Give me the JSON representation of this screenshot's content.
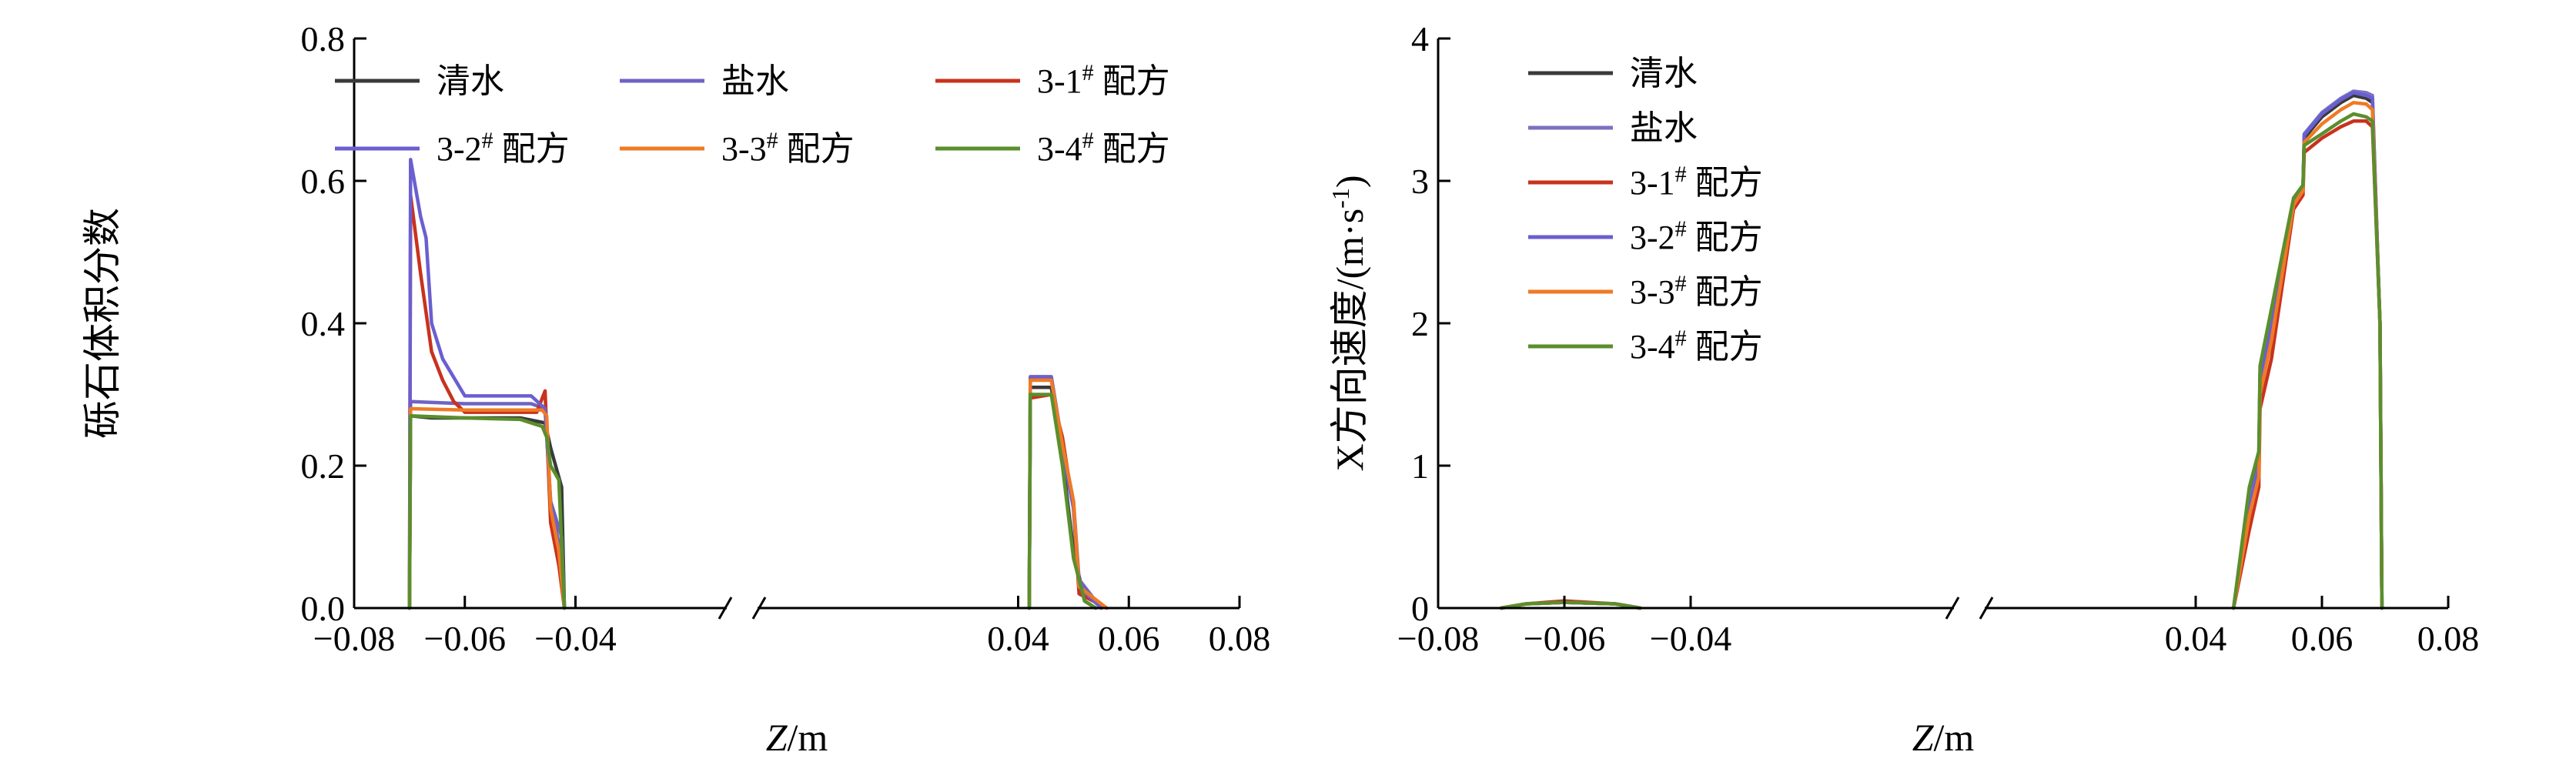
{
  "chart_data": [
    {
      "type": "line",
      "ylabel": "砾石体积分数",
      "xlabel": "Z/m",
      "xlim": [
        -0.08,
        0.08
      ],
      "ylim": [
        0,
        0.8
      ],
      "axis_break": [
        -0.037,
        -0.033
      ],
      "xticks": [
        "−0.08",
        "−0.06",
        "−0.04",
        "0.04",
        "0.06",
        "0.08"
      ],
      "yticks": [
        "0.0",
        "0.2",
        "0.4",
        "0.6",
        "0.8"
      ],
      "legend": {
        "placement": "top",
        "columns": 3
      },
      "series": [
        {
          "name": "清水",
          "sup": "",
          "suffix": "",
          "color": "#3a3a3a",
          "points": [
            [
              -0.07,
              0
            ],
            [
              -0.0698,
              0.27
            ],
            [
              -0.066,
              0.267
            ],
            [
              -0.05,
              0.267
            ],
            [
              -0.0455,
              0.26
            ],
            [
              -0.0445,
              0.225
            ],
            [
              -0.0425,
              0.17
            ],
            [
              -0.042,
              0
            ],
            [
              0.042,
              0
            ],
            [
              0.0422,
              0.31
            ],
            [
              0.046,
              0.31
            ],
            [
              0.048,
              0.21
            ],
            [
              0.05,
              0.08
            ],
            [
              0.052,
              0.01
            ],
            [
              0.054,
              0
            ]
          ]
        },
        {
          "name": "盐水",
          "sup": "",
          "suffix": "",
          "color": "#6f64c3",
          "points": [
            [
              -0.07,
              0
            ],
            [
              -0.0698,
              0.29
            ],
            [
              -0.06,
              0.287
            ],
            [
              -0.048,
              0.287
            ],
            [
              -0.0455,
              0.28
            ],
            [
              -0.0445,
              0.15
            ],
            [
              -0.0425,
              0.1
            ],
            [
              -0.042,
              0
            ],
            [
              0.042,
              0
            ],
            [
              0.0422,
              0.325
            ],
            [
              0.046,
              0.325
            ],
            [
              0.048,
              0.23
            ],
            [
              0.05,
              0.15
            ],
            [
              0.051,
              0.04
            ],
            [
              0.055,
              0
            ]
          ]
        },
        {
          "name": "3-1",
          "sup": "#",
          "suffix": " 配方",
          "color": "#c8321e",
          "points": [
            [
              -0.07,
              0
            ],
            [
              -0.0698,
              0.58
            ],
            [
              -0.068,
              0.47
            ],
            [
              -0.066,
              0.36
            ],
            [
              -0.064,
              0.32
            ],
            [
              -0.062,
              0.29
            ],
            [
              -0.06,
              0.275
            ],
            [
              -0.047,
              0.275
            ],
            [
              -0.0455,
              0.305
            ],
            [
              -0.0445,
              0.12
            ],
            [
              -0.043,
              0.06
            ],
            [
              -0.042,
              0
            ],
            [
              0.042,
              0
            ],
            [
              0.0422,
              0.295
            ],
            [
              0.046,
              0.3
            ],
            [
              0.048,
              0.24
            ],
            [
              0.05,
              0.14
            ],
            [
              0.051,
              0.02
            ],
            [
              0.056,
              0
            ]
          ]
        },
        {
          "name": "3-2",
          "sup": "#",
          "suffix": " 配方",
          "color": "#6a5fd0",
          "points": [
            [
              -0.07,
              0
            ],
            [
              -0.0698,
              0.63
            ],
            [
              -0.068,
              0.55
            ],
            [
              -0.067,
              0.52
            ],
            [
              -0.066,
              0.4
            ],
            [
              -0.064,
              0.35
            ],
            [
              -0.06,
              0.298
            ],
            [
              -0.048,
              0.298
            ],
            [
              -0.0455,
              0.28
            ],
            [
              -0.0445,
              0.15
            ],
            [
              -0.043,
              0.09
            ],
            [
              -0.042,
              0
            ],
            [
              0.042,
              0
            ],
            [
              0.0422,
              0.322
            ],
            [
              0.046,
              0.322
            ],
            [
              0.048,
              0.22
            ],
            [
              0.05,
              0.14
            ],
            [
              0.051,
              0.03
            ],
            [
              0.055,
              0
            ]
          ]
        },
        {
          "name": "3-3",
          "sup": "#",
          "suffix": " 配方",
          "color": "#ef7a25",
          "points": [
            [
              -0.07,
              0
            ],
            [
              -0.0698,
              0.28
            ],
            [
              -0.06,
              0.278
            ],
            [
              -0.046,
              0.278
            ],
            [
              -0.0452,
              0.27
            ],
            [
              -0.0445,
              0.14
            ],
            [
              -0.043,
              0.08
            ],
            [
              -0.042,
              0
            ],
            [
              0.042,
              0
            ],
            [
              0.0422,
              0.32
            ],
            [
              0.046,
              0.32
            ],
            [
              0.048,
              0.23
            ],
            [
              0.05,
              0.15
            ],
            [
              0.051,
              0.03
            ],
            [
              0.056,
              0
            ]
          ]
        },
        {
          "name": "3-4",
          "sup": "#",
          "suffix": " 配方",
          "color": "#5a8f2c",
          "points": [
            [
              -0.07,
              0
            ],
            [
              -0.0698,
              0.27
            ],
            [
              -0.06,
              0.267
            ],
            [
              -0.05,
              0.265
            ],
            [
              -0.046,
              0.255
            ],
            [
              -0.0452,
              0.24
            ],
            [
              -0.0445,
              0.2
            ],
            [
              -0.043,
              0.18
            ],
            [
              -0.042,
              0
            ],
            [
              0.042,
              0
            ],
            [
              0.0422,
              0.3
            ],
            [
              0.046,
              0.3
            ],
            [
              0.048,
              0.2
            ],
            [
              0.05,
              0.07
            ],
            [
              0.052,
              0.01
            ],
            [
              0.054,
              0
            ]
          ]
        }
      ]
    },
    {
      "type": "line",
      "ylabel": "X方向速度/(m·s",
      "ylabel_sup": "-1",
      "ylabel_end": ")",
      "xlabel": "Z/m",
      "xlim": [
        -0.08,
        0.08
      ],
      "ylim": [
        0,
        4
      ],
      "axis_break": [
        -0.02,
        -0.016
      ],
      "xticks": [
        "−0.08",
        "−0.06",
        "−0.04",
        "0.04",
        "0.06",
        "0.08"
      ],
      "yticks": [
        "0",
        "1",
        "2",
        "3",
        "4"
      ],
      "legend": {
        "placement": "top-left",
        "columns": 1
      },
      "series": [
        {
          "name": "清水",
          "sup": "",
          "suffix": "",
          "color": "#3a3a3a",
          "points": [
            [
              -0.07,
              0
            ],
            [
              -0.066,
              0.03
            ],
            [
              -0.06,
              0.04
            ],
            [
              -0.052,
              0.03
            ],
            [
              -0.048,
              0
            ],
            [
              0.046,
              0
            ],
            [
              0.0485,
              0.8
            ],
            [
              0.05,
              1.05
            ],
            [
              0.0502,
              1.65
            ],
            [
              0.052,
              2.05
            ],
            [
              0.0555,
              2.85
            ],
            [
              0.057,
              2.95
            ],
            [
              0.0572,
              3.3
            ],
            [
              0.06,
              3.45
            ],
            [
              0.063,
              3.55
            ],
            [
              0.065,
              3.6
            ],
            [
              0.067,
              3.58
            ],
            [
              0.068,
              3.55
            ],
            [
              0.0692,
              2.0
            ],
            [
              0.0695,
              0
            ]
          ]
        },
        {
          "name": "盐水",
          "sup": "",
          "suffix": "",
          "color": "#7a72c0",
          "points": [
            [
              -0.07,
              0
            ],
            [
              -0.066,
              0.03
            ],
            [
              -0.06,
              0.04
            ],
            [
              -0.052,
              0.03
            ],
            [
              -0.048,
              0
            ],
            [
              0.046,
              0
            ],
            [
              0.0485,
              0.75
            ],
            [
              0.05,
              1.0
            ],
            [
              0.0502,
              1.6
            ],
            [
              0.052,
              2.0
            ],
            [
              0.0555,
              2.85
            ],
            [
              0.057,
              2.95
            ],
            [
              0.0572,
              3.33
            ],
            [
              0.06,
              3.48
            ],
            [
              0.063,
              3.58
            ],
            [
              0.065,
              3.63
            ],
            [
              0.067,
              3.62
            ],
            [
              0.068,
              3.6
            ],
            [
              0.0692,
              2.0
            ],
            [
              0.0695,
              0
            ]
          ]
        },
        {
          "name": "3-1",
          "sup": "#",
          "suffix": " 配方",
          "color": "#c8321e",
          "points": [
            [
              -0.07,
              0
            ],
            [
              -0.066,
              0.03
            ],
            [
              -0.06,
              0.05
            ],
            [
              -0.052,
              0.03
            ],
            [
              -0.048,
              0
            ],
            [
              0.046,
              0
            ],
            [
              0.0485,
              0.55
            ],
            [
              0.05,
              0.85
            ],
            [
              0.0502,
              1.4
            ],
            [
              0.052,
              1.75
            ],
            [
              0.0555,
              2.8
            ],
            [
              0.057,
              2.9
            ],
            [
              0.0572,
              3.2
            ],
            [
              0.06,
              3.3
            ],
            [
              0.063,
              3.38
            ],
            [
              0.065,
              3.42
            ],
            [
              0.067,
              3.42
            ],
            [
              0.068,
              3.38
            ],
            [
              0.0692,
              2.0
            ],
            [
              0.0695,
              0
            ]
          ]
        },
        {
          "name": "3-2",
          "sup": "#",
          "suffix": " 配方",
          "color": "#6a5fd0",
          "points": [
            [
              -0.07,
              0
            ],
            [
              -0.066,
              0.03
            ],
            [
              -0.06,
              0.04
            ],
            [
              -0.052,
              0.03
            ],
            [
              -0.048,
              0
            ],
            [
              0.046,
              0
            ],
            [
              0.0485,
              0.72
            ],
            [
              0.05,
              0.98
            ],
            [
              0.0502,
              1.6
            ],
            [
              0.052,
              1.98
            ],
            [
              0.0555,
              2.85
            ],
            [
              0.057,
              2.95
            ],
            [
              0.0572,
              3.32
            ],
            [
              0.06,
              3.47
            ],
            [
              0.063,
              3.57
            ],
            [
              0.065,
              3.62
            ],
            [
              0.067,
              3.6
            ],
            [
              0.068,
              3.58
            ],
            [
              0.0692,
              2.0
            ],
            [
              0.0695,
              0
            ]
          ]
        },
        {
          "name": "3-3",
          "sup": "#",
          "suffix": " 配方",
          "color": "#ef7a25",
          "points": [
            [
              -0.07,
              0
            ],
            [
              -0.066,
              0.03
            ],
            [
              -0.06,
              0.04
            ],
            [
              -0.052,
              0.03
            ],
            [
              -0.048,
              0
            ],
            [
              0.046,
              0
            ],
            [
              0.0485,
              0.65
            ],
            [
              0.05,
              0.92
            ],
            [
              0.0502,
              1.5
            ],
            [
              0.052,
              1.88
            ],
            [
              0.0555,
              2.83
            ],
            [
              0.057,
              2.93
            ],
            [
              0.0572,
              3.27
            ],
            [
              0.06,
              3.4
            ],
            [
              0.063,
              3.5
            ],
            [
              0.065,
              3.55
            ],
            [
              0.067,
              3.54
            ],
            [
              0.068,
              3.5
            ],
            [
              0.0692,
              2.0
            ],
            [
              0.0695,
              0
            ]
          ]
        },
        {
          "name": "3-4",
          "sup": "#",
          "suffix": " 配方",
          "color": "#5a8f2c",
          "points": [
            [
              -0.07,
              0
            ],
            [
              -0.066,
              0.03
            ],
            [
              -0.06,
              0.04
            ],
            [
              -0.052,
              0.03
            ],
            [
              -0.048,
              0
            ],
            [
              0.046,
              0
            ],
            [
              0.0485,
              0.85
            ],
            [
              0.05,
              1.1
            ],
            [
              0.0502,
              1.7
            ],
            [
              0.052,
              2.1
            ],
            [
              0.0555,
              2.88
            ],
            [
              0.057,
              2.97
            ],
            [
              0.0572,
              3.25
            ],
            [
              0.06,
              3.33
            ],
            [
              0.063,
              3.42
            ],
            [
              0.065,
              3.47
            ],
            [
              0.067,
              3.45
            ],
            [
              0.068,
              3.42
            ],
            [
              0.0692,
              2.0
            ],
            [
              0.0695,
              0
            ]
          ]
        }
      ]
    }
  ]
}
